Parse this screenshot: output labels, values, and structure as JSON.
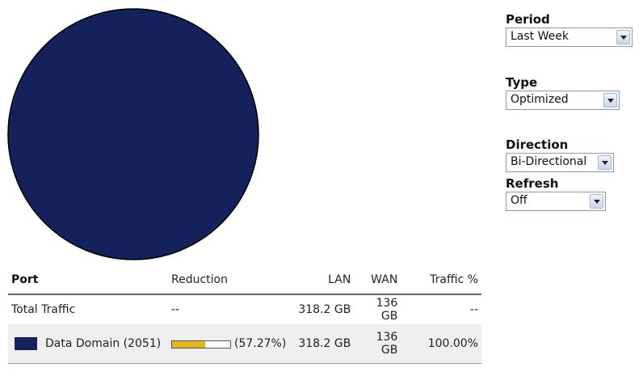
{
  "chart_data": {
    "type": "pie",
    "slices": [
      {
        "label": "Data Domain (2051)",
        "value": 100.0,
        "color": "#14215a"
      }
    ]
  },
  "filters": {
    "period": {
      "label": "Period",
      "value": "Last Week"
    },
    "type": {
      "label": "Type",
      "value": "Optimized"
    },
    "direction": {
      "label": "Direction",
      "value": "Bi-Directional"
    },
    "refresh": {
      "label": "Refresh",
      "value": "Off"
    }
  },
  "table": {
    "headers": {
      "port": "Port",
      "reduction": "Reduction",
      "lan": "LAN",
      "wan": "WAN",
      "traffic": "Traffic %"
    },
    "total": {
      "port": "Total Traffic",
      "reduction": "--",
      "lan": "318.2 GB",
      "wan": "136 GB",
      "traffic": "--"
    },
    "rows": [
      {
        "color": "#14215a",
        "port": "Data Domain (2051)",
        "reduction_fraction": 0.5727,
        "reduction_label": "(57.27%)",
        "lan": "318.2 GB",
        "wan": "136 GB",
        "traffic": "100.00%"
      }
    ]
  }
}
